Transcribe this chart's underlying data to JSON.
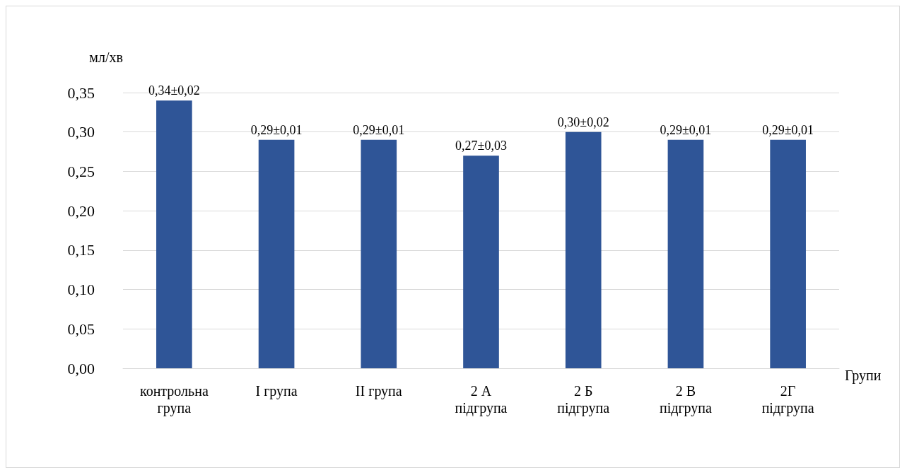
{
  "chart_data": {
    "type": "bar",
    "ylabel": "мл/хв",
    "xlabel": "Групи",
    "categories": [
      "контрольна група",
      "I група",
      "II група",
      "2 А підгрупа",
      "2 Б підгрупа",
      "2 В підгрупа",
      "2Г підгрупа"
    ],
    "values": [
      0.34,
      0.29,
      0.29,
      0.27,
      0.3,
      0.29,
      0.29
    ],
    "value_labels": [
      "0,34±0,02",
      "0,29±0,01",
      "0,29±0,01",
      "0,27±0,03",
      "0,30±0,02",
      "0,29±0,01",
      "0,29±0,01"
    ],
    "color": "#2f5597",
    "ylim": [
      0,
      0.35
    ],
    "yticks": [
      {
        "value": 0,
        "label": "0,00"
      },
      {
        "value": 0.05,
        "label": "0,05"
      },
      {
        "value": 0.1,
        "label": "0,10"
      },
      {
        "value": 0.15,
        "label": "0,15"
      },
      {
        "value": 0.2,
        "label": "0,20"
      },
      {
        "value": 0.25,
        "label": "0,25"
      },
      {
        "value": 0.3,
        "label": "0,30"
      },
      {
        "value": 0.35,
        "label": "0,35"
      }
    ],
    "grid": "y"
  }
}
